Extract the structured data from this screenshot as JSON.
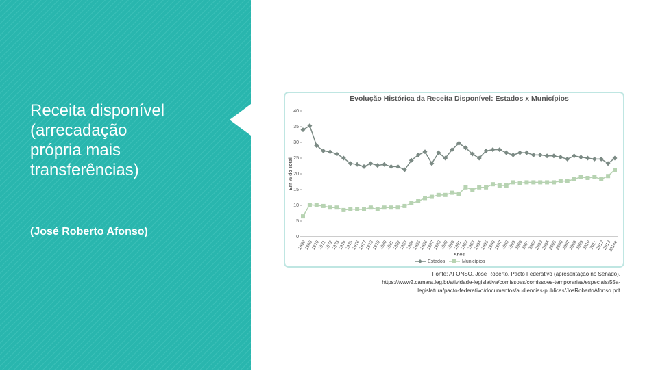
{
  "slide": {
    "heading": "Receita disponível (arrecadação própria mais transferências)",
    "author": "(José Roberto Afonso)",
    "source_lines": [
      "Fonte: AFONSO, José Roberto. Pacto Federativo (apresentação no Senado).",
      "https://www2.camara.leg.br/atividade-legislativa/comissoes/comissoes-temporarias/especiais/55a-",
      "legislatura/pacto-federativo/documentos/audiencias-publicas/JosRobertoAfonso.pdf"
    ]
  },
  "chart_data": {
    "type": "line",
    "title": "Evolução Histórica da Receita Disponível: Estados x Municípios",
    "x_label": "Anos",
    "y_label": "Em % do Total",
    "categories": [
      "1960",
      "1965",
      "1970",
      "1971",
      "1972",
      "1973",
      "1974",
      "1975",
      "1976",
      "1977",
      "1978",
      "1979",
      "1980",
      "1981",
      "1982",
      "1983",
      "1984",
      "1985",
      "1986",
      "1987",
      "1988",
      "1989",
      "1990",
      "1991",
      "1992",
      "1993",
      "1994",
      "1995",
      "1996",
      "1997",
      "1998",
      "1999",
      "2000",
      "2001",
      "2002",
      "2003",
      "2004",
      "2005",
      "2006",
      "2007",
      "2008",
      "2009",
      "2010",
      "2011",
      "2012",
      "2013",
      "2014e"
    ],
    "series": [
      {
        "name": "Estados",
        "color": "#7b8a84",
        "values": [
          34,
          35.3,
          29,
          27.3,
          27,
          26.3,
          25,
          23.3,
          23,
          22.3,
          23.3,
          22.7,
          23,
          22.3,
          22.3,
          21.3,
          24.3,
          26,
          27,
          23.3,
          26.7,
          25,
          27.7,
          29.7,
          28.3,
          26.3,
          25,
          27.3,
          27.7,
          27.7,
          26.7,
          26,
          26.7,
          26.7,
          26,
          26,
          25.7,
          25.7,
          25.3,
          24.7,
          25.7,
          25.3,
          25,
          24.7,
          24.7,
          23.3,
          25
        ]
      },
      {
        "name": "Municípios",
        "color": "#b7d3b2",
        "values": [
          6.5,
          10.2,
          10,
          9.8,
          9.3,
          9.3,
          8.5,
          8.8,
          8.7,
          8.7,
          9.3,
          8.7,
          9.3,
          9.3,
          9.3,
          9.8,
          10.7,
          11.3,
          12.3,
          12.7,
          13.3,
          13.3,
          14,
          13.7,
          15.7,
          15,
          15.7,
          15.7,
          16.7,
          16.3,
          16.3,
          17.3,
          17,
          17.3,
          17.3,
          17.3,
          17.3,
          17.3,
          17.7,
          17.7,
          18.3,
          19,
          18.7,
          19,
          18.3,
          19.3,
          21.3
        ]
      }
    ],
    "ylim": [
      0,
      40
    ],
    "yticks": [
      0,
      5,
      10,
      15,
      20,
      25,
      30,
      35,
      40
    ],
    "grid": false,
    "legend": "bottom"
  }
}
